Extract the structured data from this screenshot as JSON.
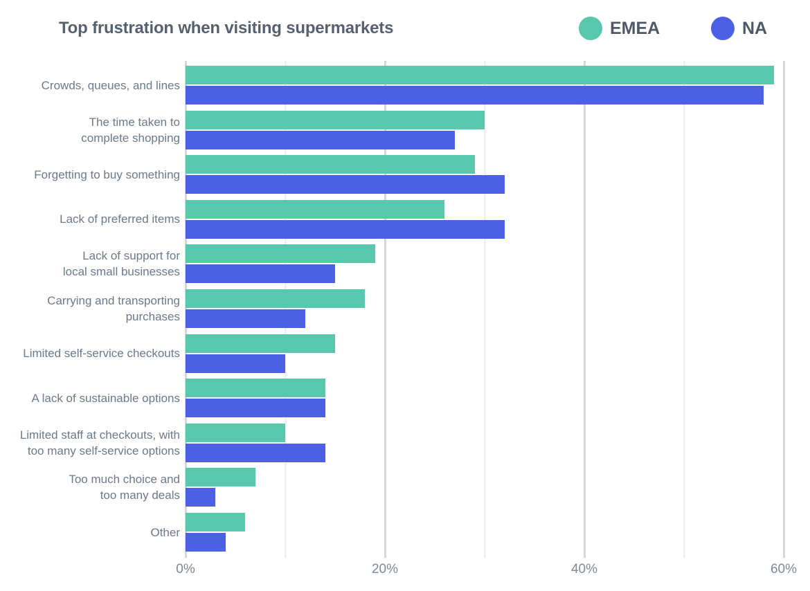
{
  "header": {
    "title": "Top frustration when visiting supermarkets",
    "legend": [
      {
        "name": "EMEA",
        "color": "#57c8ad"
      },
      {
        "name": "NA",
        "color": "#4c60e6"
      }
    ]
  },
  "chart_data": {
    "type": "bar",
    "orientation": "horizontal",
    "title": "Top frustration when visiting supermarkets",
    "categories": [
      "Crowds, queues, and lines",
      "The time taken to\ncomplete shopping",
      "Forgetting to buy something",
      "Lack of preferred items",
      "Lack of  support for\nlocal small businesses",
      "Carrying and transporting\npurchases",
      "Limited self-service checkouts",
      "A lack of sustainable options",
      "Limited staff at checkouts, with\ntoo many self-service options",
      "Too much choice and\ntoo many deals",
      "Other"
    ],
    "series": [
      {
        "name": "EMEA",
        "color": "#57c8ad",
        "values": [
          59,
          30,
          29,
          26,
          19,
          18,
          15,
          14,
          10,
          7,
          6
        ]
      },
      {
        "name": "NA",
        "color": "#4c60e6",
        "values": [
          58,
          27,
          32,
          32,
          15,
          12,
          10,
          14,
          14,
          3,
          4
        ]
      }
    ],
    "xlabel": "",
    "ylabel": "",
    "xlim": [
      0,
      60
    ],
    "x_ticks": [
      {
        "value": 0,
        "label": "0%"
      },
      {
        "value": 20,
        "label": "20%"
      },
      {
        "value": 40,
        "label": "40%"
      },
      {
        "value": 60,
        "label": "60%"
      }
    ],
    "minor_grid_values": [
      10,
      30,
      50
    ],
    "grid": "vertical",
    "legend_position": "top-right",
    "unit": "percent"
  }
}
